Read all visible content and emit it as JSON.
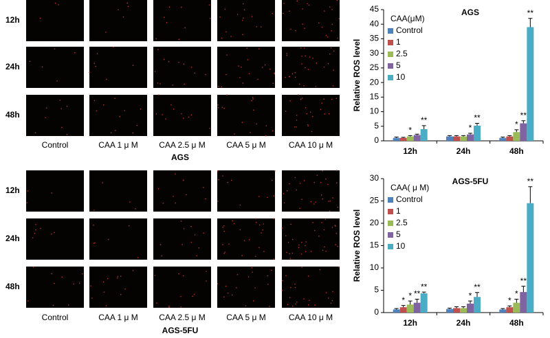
{
  "image_grids": [
    {
      "caption": "AGS",
      "rows": [
        "12h",
        "24h",
        "48h"
      ],
      "columns": [
        "Control",
        "CAA 1 μ M",
        "CAA 2.5 μ M",
        "CAA 5 μ M",
        "CAA 10 μ M"
      ]
    },
    {
      "caption": "AGS-5FU",
      "rows": [
        "12h",
        "24h",
        "48h"
      ],
      "columns": [
        "Control",
        "CAA 1 μ M",
        "CAA 2.5 μ M",
        "CAA 5 μ M",
        "CAA 10 μ M"
      ]
    }
  ],
  "chart_data": [
    {
      "type": "bar",
      "title": "AGS",
      "ylabel": "Relative ROS level",
      "legend_title": "CAA(μM)",
      "legend": "upper left",
      "categories": [
        "12h",
        "24h",
        "48h"
      ],
      "ylim": [
        0,
        45
      ],
      "yticks": [
        0,
        5,
        10,
        15,
        20,
        25,
        30,
        35,
        40,
        45
      ],
      "series": [
        {
          "name": "Control",
          "color": "#4f81bd",
          "values": [
            1,
            1.5,
            1
          ],
          "errors": [
            0.3,
            0.3,
            0.3
          ],
          "annotations": [
            null,
            null,
            null
          ]
        },
        {
          "name": "1",
          "color": "#c0504d",
          "values": [
            1,
            1.5,
            1.5
          ],
          "errors": [
            0.2,
            0.3,
            0.3
          ],
          "annotations": [
            null,
            null,
            null
          ]
        },
        {
          "name": "2.5",
          "color": "#9bbb59",
          "values": [
            1.5,
            1.5,
            3
          ],
          "errors": [
            0.3,
            0.3,
            0.8
          ],
          "annotations": [
            "*",
            null,
            "*"
          ]
        },
        {
          "name": "5",
          "color": "#8064a2",
          "values": [
            2,
            2.2,
            6
          ],
          "errors": [
            0.3,
            0.4,
            0.9
          ],
          "annotations": [
            null,
            "*",
            "**"
          ]
        },
        {
          "name": "10",
          "color": "#4bacc6",
          "values": [
            4,
            5.2,
            39
          ],
          "errors": [
            1.2,
            0.8,
            3
          ],
          "annotations": [
            "**",
            "**",
            "**"
          ]
        }
      ]
    },
    {
      "type": "bar",
      "title": "AGS-5FU",
      "ylabel": "Relative ROS level",
      "legend_title": "CAA( μ M)",
      "legend": "upper left",
      "categories": [
        "12h",
        "24h",
        "48h"
      ],
      "ylim": [
        0,
        30
      ],
      "yticks": [
        0,
        5,
        10,
        15,
        20,
        25,
        30
      ],
      "series": [
        {
          "name": "Control",
          "color": "#4f81bd",
          "values": [
            0.7,
            0.8,
            0.7
          ],
          "errors": [
            0.2,
            0.2,
            0.2
          ],
          "annotations": [
            null,
            null,
            null
          ]
        },
        {
          "name": "1",
          "color": "#c0504d",
          "values": [
            1.2,
            1,
            1.2
          ],
          "errors": [
            0.4,
            0.3,
            0.3
          ],
          "annotations": [
            "*",
            null,
            "*"
          ]
        },
        {
          "name": "2.5",
          "color": "#9bbb59",
          "values": [
            1.8,
            1,
            2.2
          ],
          "errors": [
            0.8,
            0.3,
            0.8
          ],
          "annotations": [
            "*",
            null,
            "*"
          ]
        },
        {
          "name": "5",
          "color": "#8064a2",
          "values": [
            2.2,
            2,
            4.6
          ],
          "errors": [
            0.8,
            0.6,
            1.3
          ],
          "annotations": [
            "**",
            "*",
            "**"
          ]
        },
        {
          "name": "10",
          "color": "#4bacc6",
          "values": [
            4.3,
            3.5,
            24.5
          ],
          "errors": [
            0.3,
            1,
            3.7
          ],
          "annotations": [
            "**",
            "**",
            "**"
          ]
        }
      ]
    }
  ]
}
